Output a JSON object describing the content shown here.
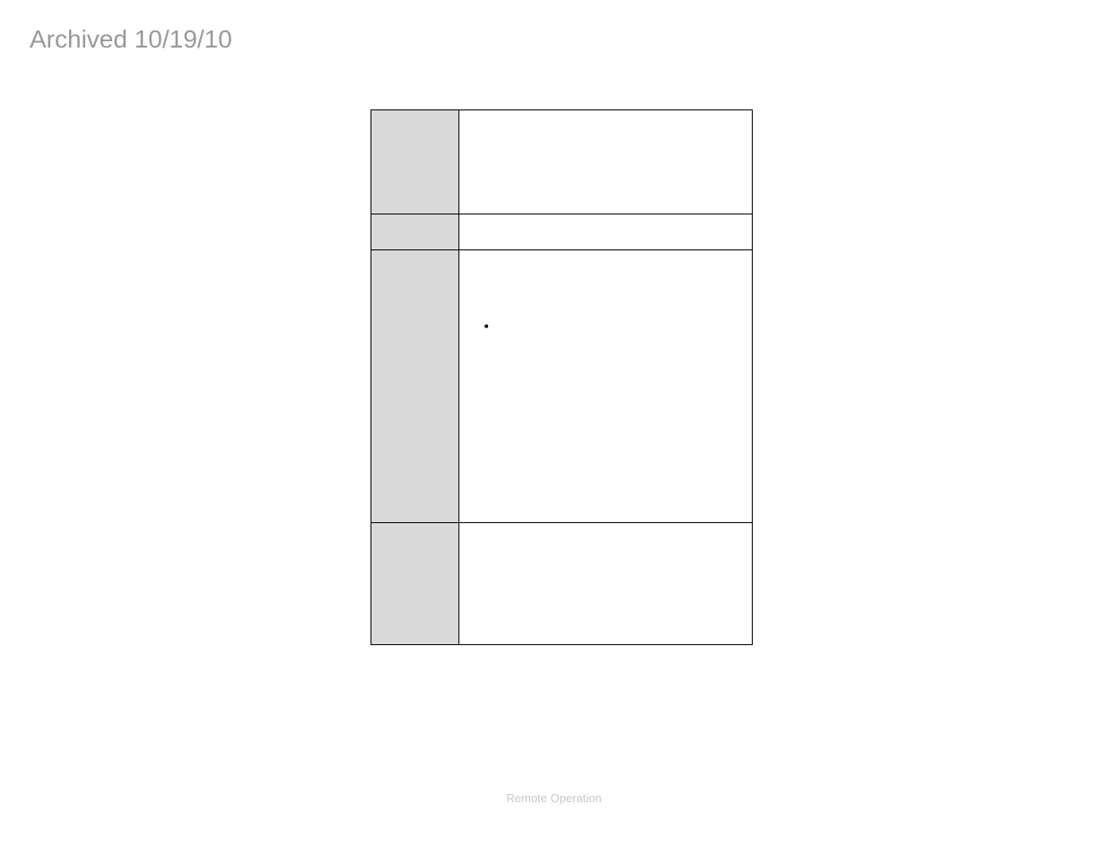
{
  "watermark": "Archived 10/19/10",
  "footer": "Remote Operation",
  "table": {
    "rows": [
      {
        "label": "",
        "content": ""
      },
      {
        "label": "",
        "content": ""
      },
      {
        "label": "",
        "bullets": [
          "",
          "",
          "",
          "",
          "",
          ""
        ]
      },
      {
        "label": "",
        "content": ""
      }
    ],
    "label_bg": "#d9d9d9",
    "content_bg": "#ffffff",
    "border_color": "#000000"
  },
  "colors": {
    "watermark_text": "#999999",
    "footer_text": "#c8c8c8",
    "page_bg": "#ffffff"
  }
}
